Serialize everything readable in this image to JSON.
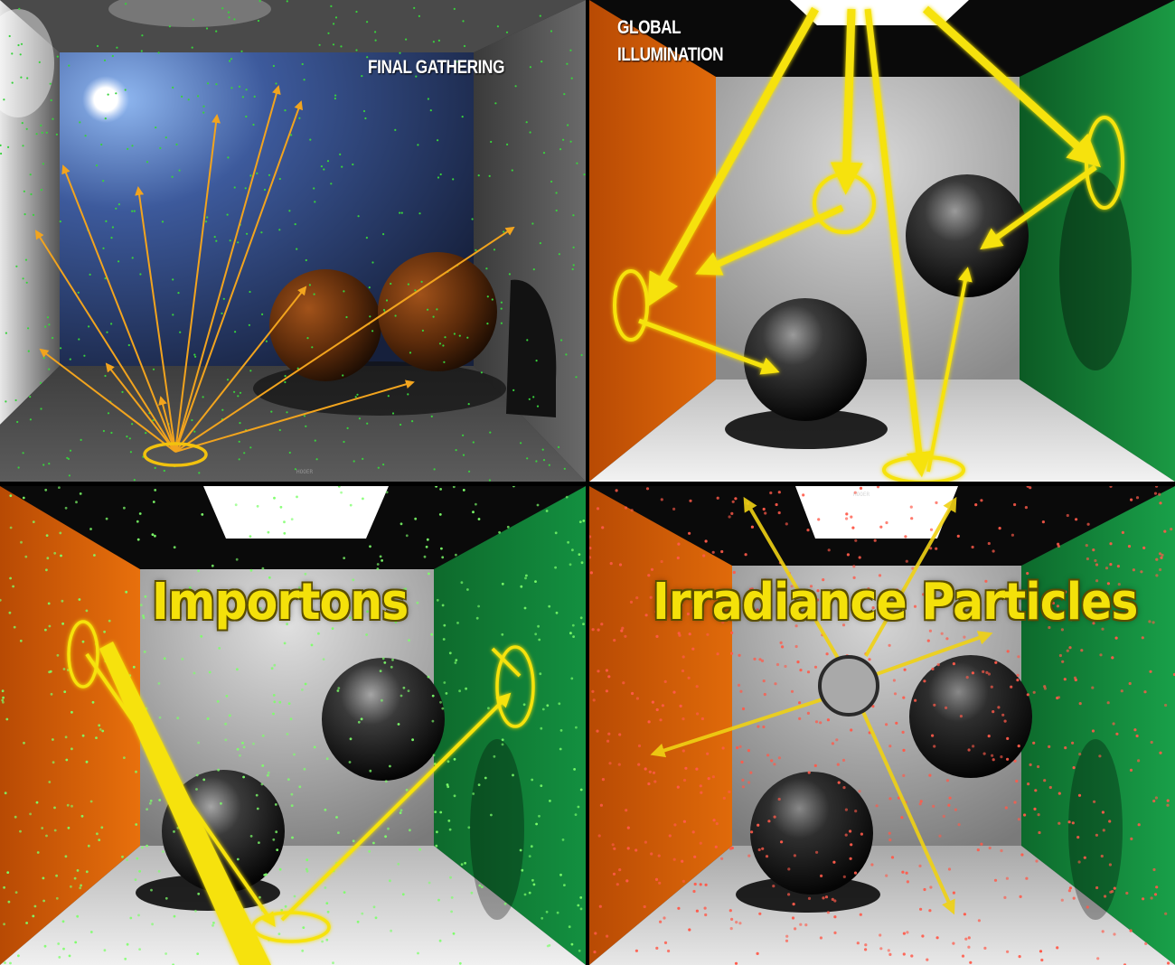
{
  "panels": {
    "final_gathering": {
      "label": "FINAL GATHERING",
      "watermark": "HOOER"
    },
    "global_illumination": {
      "label_line1": "GLOBAL",
      "label_line2": "ILLUMINATION"
    },
    "importons": {
      "label": "Importons"
    },
    "irradiance_particles": {
      "label": "Irradiance Particles",
      "watermark": "HOOER"
    }
  },
  "colors": {
    "arrow_orange": "#f2a41e",
    "arrow_yellow": "#f6e20b",
    "wall_orange": "#d75c05",
    "wall_green": "#10883a",
    "sky_blue": "#2a3e78",
    "dot_green": "#38d23c",
    "dot_red": "#ff5a4a"
  }
}
